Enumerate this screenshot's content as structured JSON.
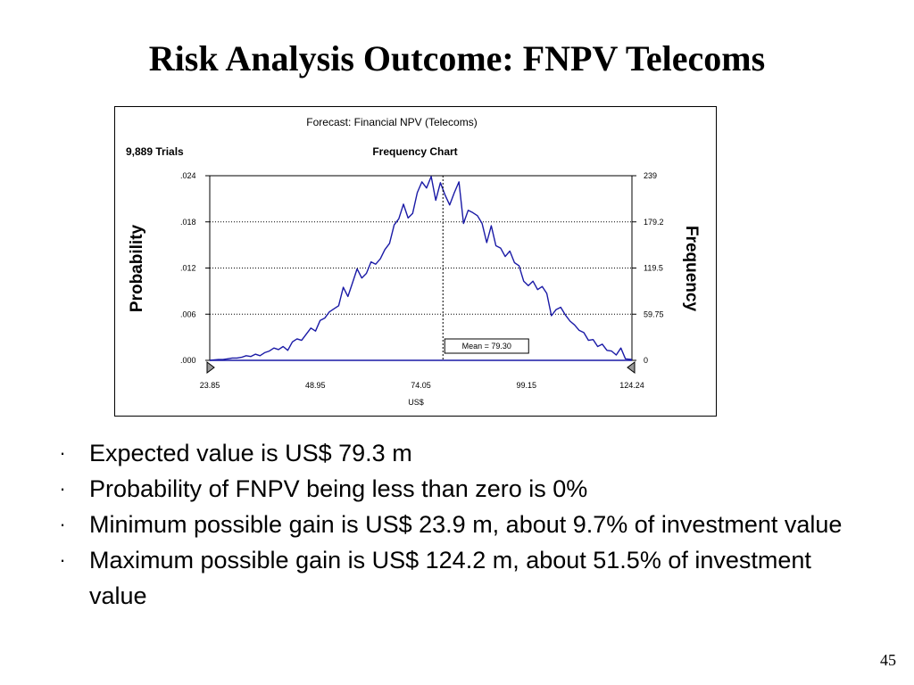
{
  "slide": {
    "title": "Risk Analysis Outcome: FNPV Telecoms",
    "page_number": "45"
  },
  "chart_data": {
    "type": "line",
    "title": "Forecast: Financial NPV (Telecoms)",
    "subtitle": "Frequency Chart",
    "trials": "9,889 Trials",
    "xlabel": "US$",
    "ylabel_left": "Probability",
    "ylabel_right": "Frequency",
    "xlim": [
      23.85,
      124.24
    ],
    "ylim_left": [
      0,
      0.024
    ],
    "ylim_right": [
      0,
      239
    ],
    "x_tick_labels": [
      "23.85",
      "48.95",
      "74.05",
      "99.15",
      "124.24"
    ],
    "left_tick_labels": [
      ".000",
      ".006",
      ".012",
      ".018",
      ".024"
    ],
    "right_tick_labels": [
      "0",
      "59.75",
      "119.5",
      "179.2",
      "239"
    ],
    "grid": "horizontal dotted",
    "mean_label": "Mean = 79.30",
    "mean": 79.3,
    "series": [
      {
        "color": "#1a1aa6",
        "x": [
          23.85,
          25.9,
          27.0,
          28.1,
          29.2,
          30.3,
          31.4,
          32.5,
          33.6,
          34.7,
          35.8,
          36.9,
          38.0,
          39.1,
          40.2,
          41.3,
          42.4,
          43.5,
          44.6,
          45.7,
          46.8,
          47.9,
          49.0,
          50.1,
          51.2,
          52.3,
          53.4,
          54.5,
          55.6,
          56.7,
          57.8,
          58.9,
          60.0,
          61.1,
          62.2,
          63.3,
          64.4,
          65.5,
          66.6,
          67.7,
          68.8,
          69.9,
          71.0,
          72.1,
          73.2,
          74.3,
          75.4,
          76.5,
          77.6,
          78.7,
          79.8,
          80.9,
          82.0,
          83.1,
          84.2,
          85.3,
          86.4,
          87.5,
          88.6,
          89.7,
          90.8,
          91.9,
          93.0,
          94.1,
          95.2,
          96.3,
          97.4,
          98.5,
          99.6,
          100.7,
          101.8,
          102.9,
          104.0,
          105.1,
          106.2,
          107.3,
          108.4,
          109.5,
          110.6,
          111.7,
          112.8,
          113.9,
          115.0,
          116.1,
          117.2,
          118.3,
          119.4,
          120.5,
          121.6,
          122.7,
          124.24
        ],
        "y": [
          0.0,
          0.0001,
          0.0001,
          0.0002,
          0.0003,
          0.0003,
          0.0004,
          0.0006,
          0.0005,
          0.0008,
          0.0006,
          0.001,
          0.0012,
          0.0016,
          0.0014,
          0.0018,
          0.0013,
          0.0024,
          0.0028,
          0.0026,
          0.0034,
          0.0042,
          0.0038,
          0.0052,
          0.0055,
          0.0063,
          0.0067,
          0.0071,
          0.0095,
          0.0083,
          0.0101,
          0.0119,
          0.0107,
          0.0113,
          0.0128,
          0.0125,
          0.0132,
          0.0144,
          0.0152,
          0.0176,
          0.0184,
          0.0203,
          0.0185,
          0.0191,
          0.0218,
          0.0232,
          0.0224,
          0.0239,
          0.0208,
          0.0231,
          0.0215,
          0.0202,
          0.0218,
          0.0232,
          0.0178,
          0.0195,
          0.0192,
          0.0188,
          0.0178,
          0.0153,
          0.0175,
          0.0149,
          0.0146,
          0.0135,
          0.0142,
          0.0127,
          0.0123,
          0.0103,
          0.0097,
          0.0103,
          0.0092,
          0.0096,
          0.0087,
          0.0058,
          0.0066,
          0.0069,
          0.0059,
          0.0051,
          0.0046,
          0.0039,
          0.0036,
          0.0026,
          0.0027,
          0.0018,
          0.0021,
          0.0013,
          0.0012,
          0.0007,
          0.0016,
          0.0002,
          0.0001
        ]
      }
    ]
  },
  "bullets": [
    "Expected value is US$ 79.3 m",
    "Probability of FNPV being less than zero is 0%",
    "Minimum possible gain is US$ 23.9 m, about 9.7% of investment value",
    "Maximum possible gain is US$ 124.2 m, about 51.5% of investment value"
  ],
  "bullet_glyph": "·"
}
